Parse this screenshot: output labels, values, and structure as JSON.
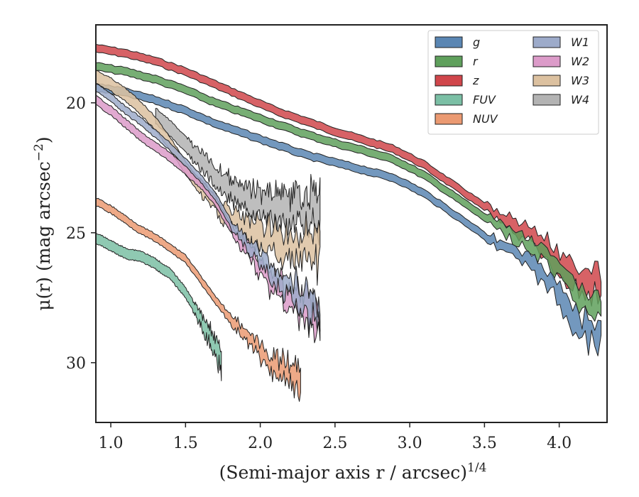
{
  "chart_data": {
    "type": "area",
    "xlabel": "(Semi-major axis r / arcsec)",
    "xlabel_exponent": "1/4",
    "ylabel": "μ(r) (mag arcsec",
    "ylabel_exponent": "−2",
    "ylabel_close": ")",
    "xlim": [
      0.9,
      4.32
    ],
    "ylim": [
      32.3,
      17.0
    ],
    "y_inverted": true,
    "xticks": [
      1.0,
      1.5,
      2.0,
      2.5,
      3.0,
      3.5,
      4.0
    ],
    "xtick_labels": [
      "1.0",
      "1.5",
      "2.0",
      "2.5",
      "3.0",
      "3.5",
      "4.0"
    ],
    "yticks": [
      20,
      25,
      30
    ],
    "ytick_labels": [
      "20",
      "25",
      "30"
    ],
    "grid": false,
    "legend_placement": "top-right",
    "legend_columns": 2,
    "series": [
      {
        "name": "g",
        "color": "#5a86b3",
        "x": [
          0.9,
          1.1,
          1.3,
          1.5,
          1.7,
          1.9,
          2.1,
          2.3,
          2.5,
          2.7,
          2.9,
          3.1,
          3.3,
          3.5,
          3.7,
          3.9,
          4.1,
          4.28
        ],
        "y": [
          19.4,
          19.6,
          19.9,
          20.3,
          20.8,
          21.2,
          21.6,
          22.0,
          22.3,
          22.6,
          22.9,
          23.5,
          24.3,
          25.1,
          25.8,
          26.6,
          28.3,
          29.0
        ],
        "width": 0.3,
        "noise_start": 3.5,
        "noise_amp": 0.6
      },
      {
        "name": "r",
        "color": "#5fa05c",
        "x": [
          0.9,
          1.1,
          1.3,
          1.5,
          1.7,
          1.9,
          2.1,
          2.3,
          2.5,
          2.7,
          2.9,
          3.1,
          3.3,
          3.5,
          3.7,
          3.9,
          4.1,
          4.28
        ],
        "y": [
          18.6,
          18.8,
          19.1,
          19.5,
          20.0,
          20.4,
          20.8,
          21.2,
          21.55,
          21.85,
          22.2,
          22.8,
          23.6,
          24.4,
          25.1,
          25.9,
          27.3,
          28.0
        ],
        "width": 0.3,
        "noise_start": 3.5,
        "noise_amp": 0.55
      },
      {
        "name": "z",
        "color": "#d0464b",
        "x": [
          0.9,
          1.1,
          1.3,
          1.5,
          1.7,
          1.9,
          2.1,
          2.3,
          2.5,
          2.7,
          2.9,
          3.1,
          3.3,
          3.5,
          3.7,
          3.9,
          4.1,
          4.28
        ],
        "y": [
          17.9,
          18.1,
          18.4,
          18.8,
          19.3,
          19.8,
          20.3,
          20.7,
          21.1,
          21.45,
          21.8,
          22.4,
          23.2,
          24.0,
          24.8,
          25.6,
          26.6,
          27.0
        ],
        "width": 0.3,
        "noise_start": 3.5,
        "noise_amp": 0.7
      },
      {
        "name": "FUV",
        "color": "#7bbfa5",
        "x": [
          0.9,
          1.0,
          1.1,
          1.2,
          1.3,
          1.4,
          1.5,
          1.6,
          1.65,
          1.7,
          1.74
        ],
        "y": [
          25.2,
          25.5,
          25.8,
          25.9,
          26.2,
          26.6,
          27.3,
          28.3,
          28.9,
          29.3,
          29.8
        ],
        "width": 0.4,
        "noise_start": 1.55,
        "noise_amp": 0.5
      },
      {
        "name": "NUV",
        "color": "#eb9a72",
        "x": [
          0.9,
          1.0,
          1.1,
          1.2,
          1.3,
          1.4,
          1.5,
          1.6,
          1.7,
          1.8,
          1.9,
          2.0,
          2.1,
          2.2,
          2.27
        ],
        "y": [
          23.8,
          24.1,
          24.5,
          24.9,
          25.2,
          25.6,
          26.0,
          26.8,
          27.6,
          28.3,
          28.9,
          29.6,
          30.2,
          30.5,
          30.8
        ],
        "width": 0.3,
        "noise_start": 1.75,
        "noise_amp": 0.6
      },
      {
        "name": "W1",
        "color": "#9dabca",
        "x": [
          0.9,
          1.0,
          1.1,
          1.2,
          1.3,
          1.4,
          1.5,
          1.6,
          1.7,
          1.8,
          1.9,
          2.0,
          2.1,
          2.2,
          2.3,
          2.4
        ],
        "y": [
          19.4,
          19.8,
          20.3,
          20.7,
          21.2,
          21.7,
          22.3,
          22.9,
          23.6,
          24.6,
          25.4,
          26.0,
          26.6,
          27.1,
          27.6,
          28.2
        ],
        "width": 0.3,
        "noise_start": 1.8,
        "noise_amp": 0.7
      },
      {
        "name": "W2",
        "color": "#dc9bc9",
        "x": [
          0.9,
          1.0,
          1.1,
          1.2,
          1.3,
          1.4,
          1.5,
          1.6,
          1.7,
          1.8,
          1.9,
          2.0,
          2.1,
          2.2,
          2.3,
          2.4
        ],
        "y": [
          19.9,
          20.3,
          20.8,
          21.3,
          21.7,
          22.1,
          22.6,
          23.1,
          23.8,
          24.8,
          25.6,
          26.3,
          27.0,
          27.5,
          28.0,
          28.4
        ],
        "width": 0.35,
        "noise_start": 1.8,
        "noise_amp": 0.8
      },
      {
        "name": "W3",
        "color": "#dcc1a0",
        "x": [
          0.9,
          1.0,
          1.1,
          1.2,
          1.3,
          1.4,
          1.5,
          1.6,
          1.7,
          1.8,
          1.9,
          2.0,
          2.1,
          2.2,
          2.3,
          2.4
        ],
        "y": [
          19.0,
          19.3,
          19.7,
          20.2,
          20.8,
          21.6,
          22.5,
          23.3,
          23.9,
          24.5,
          24.9,
          25.1,
          25.3,
          25.5,
          25.6,
          25.6
        ],
        "width": 0.5,
        "noise_start": 1.6,
        "noise_amp": 0.8
      },
      {
        "name": "W4",
        "color": "#b3b3b3",
        "x": [
          1.3,
          1.4,
          1.5,
          1.6,
          1.7,
          1.8,
          1.9,
          2.0,
          2.1,
          2.2,
          2.3,
          2.4
        ],
        "y": [
          20.5,
          21.0,
          21.6,
          22.2,
          22.8,
          23.3,
          23.7,
          23.9,
          24.0,
          24.1,
          24.1,
          24.1
        ],
        "width": 0.6,
        "noise_start": 1.5,
        "noise_amp": 0.7
      }
    ]
  }
}
